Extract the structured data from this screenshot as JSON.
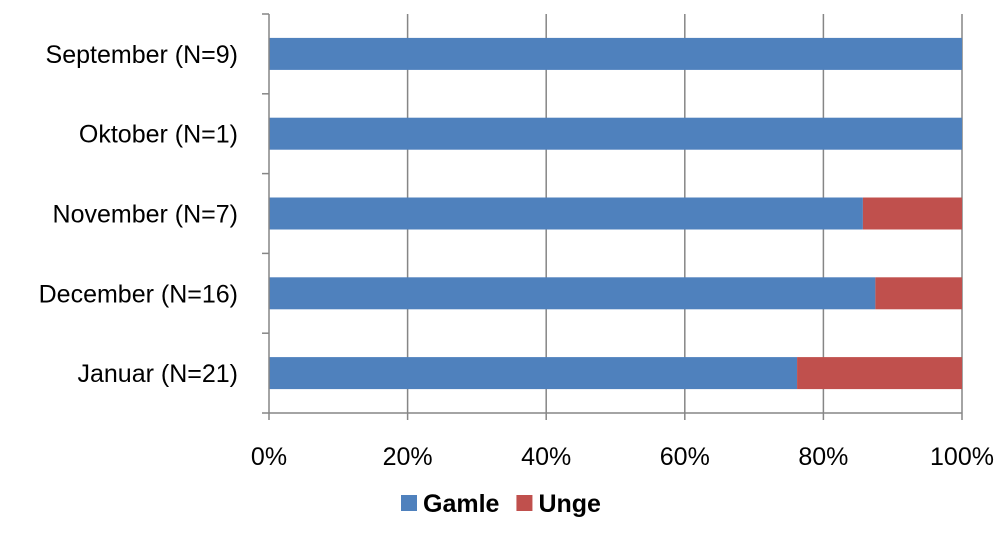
{
  "chart_data": {
    "type": "bar",
    "orientation": "horizontal",
    "stacked": "percent",
    "categories": [
      "September (N=9)",
      "Oktober (N=1)",
      "November (N=7)",
      "December (N=16)",
      "Januar (N=21)"
    ],
    "series": [
      {
        "name": "Gamle",
        "values": [
          100,
          100,
          85.7,
          87.5,
          76.2
        ]
      },
      {
        "name": "Unge",
        "values": [
          0,
          0,
          14.3,
          12.5,
          23.8
        ]
      }
    ],
    "xlim": [
      0,
      100
    ],
    "x_ticks": [
      0,
      20,
      40,
      60,
      80,
      100
    ],
    "x_tick_labels": [
      "0%",
      "20%",
      "40%",
      "60%",
      "80%",
      "100%"
    ],
    "title": "",
    "xlabel": "",
    "ylabel": "",
    "grid": "vertical",
    "legend_position": "bottom",
    "colors": {
      "Gamle": "#4F81BD",
      "Unge": "#C0504D",
      "gridline": "#868686",
      "axis": "#868686"
    }
  }
}
